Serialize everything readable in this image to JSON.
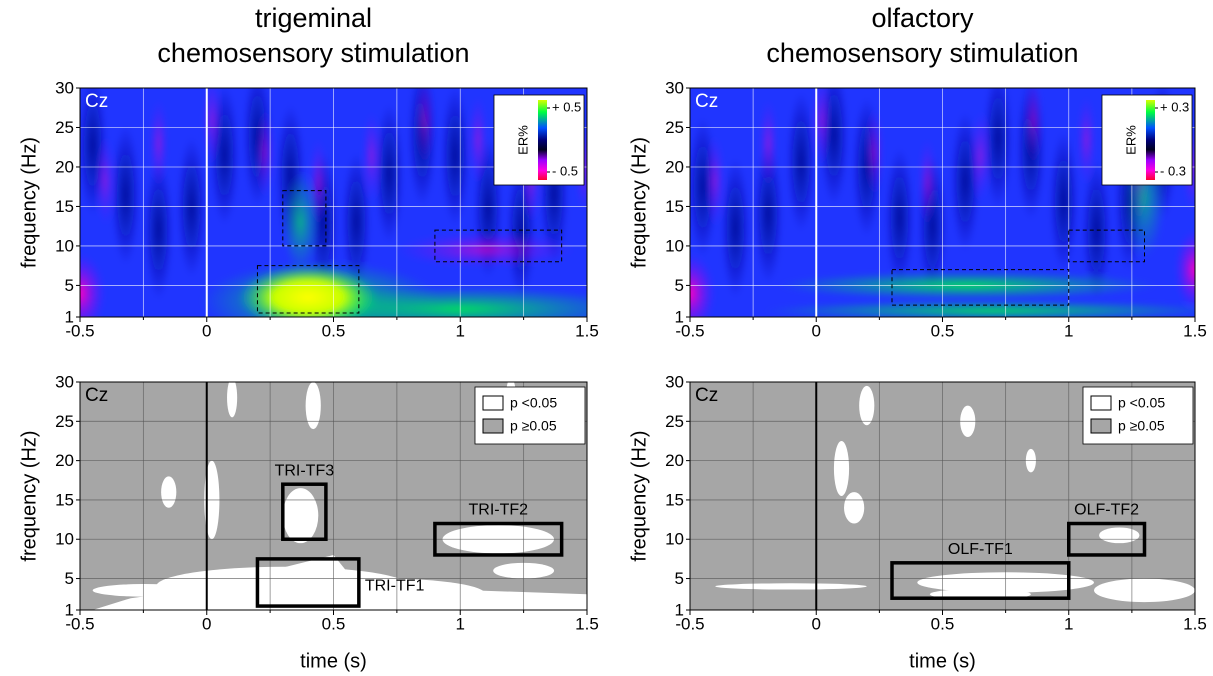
{
  "chart_data": [
    {
      "type": "heatmap",
      "title": "trigeminal",
      "subtitle": "chemosensory stimulation",
      "channel": "Cz",
      "ylabel": "frequency (Hz)",
      "xlim": [
        -0.5,
        1.5
      ],
      "xticks": [
        -0.5,
        0,
        0.5,
        1,
        1.5
      ],
      "xminor": [
        -0.25,
        0.25,
        0.75,
        1.25
      ],
      "ylim": [
        1,
        30
      ],
      "yticks": [
        1,
        5,
        10,
        15,
        20,
        25,
        30
      ],
      "onset": 0,
      "grid": true,
      "colorbar": {
        "label": "ER%",
        "lim": [
          -0.5,
          0.5
        ],
        "ticks": [
          {
            "value": 0.5,
            "label": "+ 0.5"
          },
          {
            "value": -0.5,
            "label": "- 0.5"
          }
        ]
      },
      "regions": [
        {
          "x": [
            0.3,
            0.47
          ],
          "y": [
            10,
            17
          ]
        },
        {
          "x": [
            0.2,
            0.6
          ],
          "y": [
            1.5,
            7.5
          ]
        },
        {
          "x": [
            0.9,
            1.4
          ],
          "y": [
            8,
            12
          ]
        }
      ]
    },
    {
      "type": "heatmap",
      "title": "olfactory",
      "subtitle": "chemosensory stimulation",
      "channel": "Cz",
      "ylabel": "frequency (Hz)",
      "xlim": [
        -0.5,
        1.5
      ],
      "xticks": [
        -0.5,
        0,
        0.5,
        1,
        1.5
      ],
      "xminor": [
        -0.25,
        0.25,
        0.75,
        1.25
      ],
      "ylim": [
        1,
        30
      ],
      "yticks": [
        1,
        5,
        10,
        15,
        20,
        25,
        30
      ],
      "onset": 0,
      "grid": true,
      "colorbar": {
        "label": "ER%",
        "lim": [
          -0.3,
          0.3
        ],
        "ticks": [
          {
            "value": 0.3,
            "label": "+ 0.3"
          },
          {
            "value": -0.3,
            "label": "- 0.3"
          }
        ]
      },
      "regions": [
        {
          "x": [
            0.3,
            1.0
          ],
          "y": [
            2.5,
            7
          ]
        },
        {
          "x": [
            1.0,
            1.3
          ],
          "y": [
            8,
            12
          ]
        }
      ]
    },
    {
      "type": "significance",
      "channel": "Cz",
      "ylabel": "frequency (Hz)",
      "xlabel": "time (s)",
      "xlim": [
        -0.5,
        1.5
      ],
      "xticks": [
        -0.5,
        0,
        0.5,
        1,
        1.5
      ],
      "xminor": [
        -0.25,
        0.25,
        0.75,
        1.25
      ],
      "ylim": [
        1,
        30
      ],
      "yticks": [
        1,
        5,
        10,
        15,
        20,
        25,
        30
      ],
      "onset": 0,
      "grid": true,
      "legend": [
        {
          "name": "p <0.05",
          "color": "#ffffff"
        },
        {
          "name": "p ≥0.05",
          "color": "#a6a6a6"
        }
      ],
      "legend_position": "upper right",
      "regions": [
        {
          "name": "TRI-TF3",
          "x": [
            0.3,
            0.47
          ],
          "y": [
            10,
            17
          ]
        },
        {
          "name": "TRI-TF1",
          "x": [
            0.2,
            0.6
          ],
          "y": [
            1.5,
            7.5
          ]
        },
        {
          "name": "TRI-TF2",
          "x": [
            0.9,
            1.4
          ],
          "y": [
            8,
            12
          ]
        }
      ]
    },
    {
      "type": "significance",
      "channel": "Cz",
      "ylabel": "frequency (Hz)",
      "xlabel": "time (s)",
      "xlim": [
        -0.5,
        1.5
      ],
      "xticks": [
        -0.5,
        0,
        0.5,
        1,
        1.5
      ],
      "xminor": [
        -0.25,
        0.25,
        0.75,
        1.25
      ],
      "ylim": [
        1,
        30
      ],
      "yticks": [
        1,
        5,
        10,
        15,
        20,
        25,
        30
      ],
      "onset": 0,
      "grid": true,
      "legend": [
        {
          "name": "p <0.05",
          "color": "#ffffff"
        },
        {
          "name": "p ≥0.05",
          "color": "#a6a6a6"
        }
      ],
      "legend_position": "upper right",
      "regions": [
        {
          "name": "OLF-TF1",
          "x": [
            0.3,
            1.0
          ],
          "y": [
            2.5,
            7
          ]
        },
        {
          "name": "OLF-TF2",
          "x": [
            1.0,
            1.3
          ],
          "y": [
            8,
            12
          ]
        }
      ]
    }
  ]
}
